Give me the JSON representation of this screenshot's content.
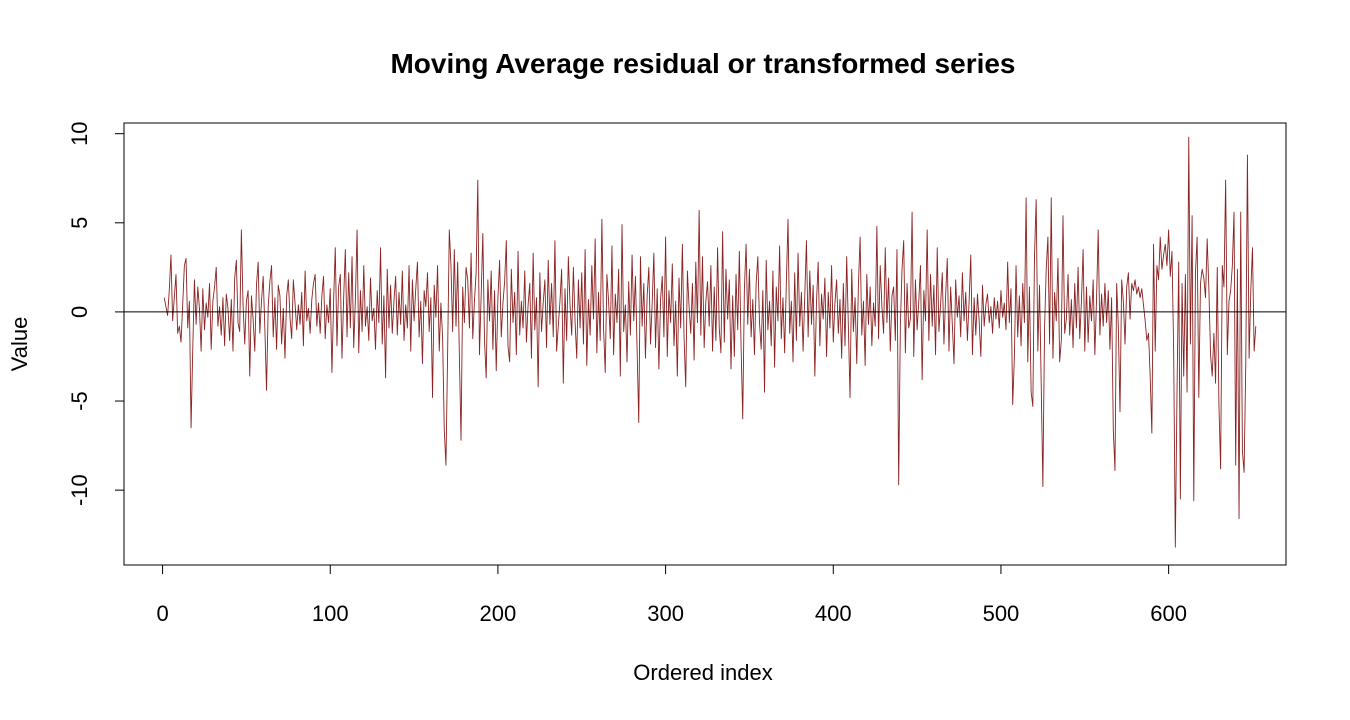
{
  "chart_data": {
    "type": "line",
    "title": "Moving Average residual or transformed series",
    "xlabel": "Ordered index",
    "ylabel": "Value",
    "xlim": [
      -23,
      670
    ],
    "ylim": [
      -14.2,
      10.6
    ],
    "x_ticks": [
      0,
      100,
      200,
      300,
      400,
      500,
      600
    ],
    "x_tick_labels": [
      "0",
      "100",
      "200",
      "300",
      "400",
      "500",
      "600"
    ],
    "y_ticks": [
      -10,
      -5,
      0,
      5,
      10
    ],
    "y_tick_labels": [
      "-10",
      "-5",
      "0",
      "5",
      "10"
    ],
    "reference_line": {
      "y": 0,
      "color": "#000000"
    },
    "grid": false,
    "legend": "none",
    "series": [
      {
        "color": "#8b2323",
        "x_start": 1,
        "n": 645,
        "values": [
          0.8,
          0.3,
          -0.2,
          1.2,
          3.2,
          -0.5,
          0.8,
          2.1,
          -1.2,
          -0.8,
          -1.7,
          0.4,
          2.6,
          3.0,
          -0.9,
          0.6,
          -6.5,
          -2.1,
          1.8,
          -0.7,
          1.4,
          0.2,
          -2.2,
          1.3,
          -1.0,
          0.5,
          -0.3,
          1.6,
          -2.1,
          0.6,
          1.4,
          2.5,
          -0.8,
          0.3,
          -1.3,
          0.8,
          -1.9,
          1.0,
          0.2,
          -1.6,
          0.7,
          -2.2,
          1.9,
          2.9,
          -0.6,
          -1.1,
          4.6,
          0.4,
          -1.8,
          0.6,
          1.2,
          -3.6,
          0.9,
          -0.4,
          -2.2,
          1.5,
          2.8,
          -1.2,
          0.6,
          2.0,
          -0.9,
          -4.4,
          0.3,
          1.7,
          2.6,
          -1.4,
          0.8,
          -2.1,
          1.5,
          0.9,
          -1.8,
          0.2,
          -2.6,
          0.9,
          1.8,
          -0.3,
          -1.5,
          1.8,
          0.5,
          -1.0,
          0.4,
          -0.7,
          1.1,
          -1.9,
          2.3,
          -0.5,
          0.2,
          -1.2,
          0.7,
          1.6,
          2.1,
          -0.8,
          0.5,
          -1.2,
          0.9,
          2.0,
          -1.5,
          0.4,
          -0.6,
          1.3,
          -3.4,
          0.6,
          3.6,
          -1.9,
          1.4,
          2.1,
          -2.6,
          0.8,
          3.5,
          -1.4,
          2.2,
          -0.9,
          3.1,
          -2.0,
          0.7,
          4.6,
          -2.3,
          1.2,
          -1.1,
          2.6,
          -0.8,
          0.3,
          -1.6,
          1.9,
          -0.5,
          0.2,
          -2.1,
          1.2,
          -0.6,
          3.6,
          -1.8,
          0.9,
          -3.7,
          2.4,
          -0.9,
          1.5,
          -1.2,
          0.6,
          2.0,
          -1.3,
          1.1,
          -0.7,
          2.3,
          -1.6,
          0.4,
          -0.9,
          2.6,
          -2.2,
          1.8,
          -0.5,
          1.3,
          2.8,
          -1.4,
          0.6,
          -2.9,
          1.2,
          0.3,
          2.2,
          -1.1,
          0.8,
          -4.8,
          1.5,
          -0.3,
          2.6,
          -2.2,
          0.5,
          -1.4,
          -6.6,
          -8.6,
          -2.3,
          4.6,
          2.6,
          -1.1,
          3.5,
          -0.8,
          2.8,
          -2.4,
          -7.2,
          1.4,
          -0.6,
          2.5,
          1.8,
          -0.9,
          3.3,
          -1.5,
          0.6,
          2.2,
          7.4,
          -2.4,
          0.9,
          4.4,
          -1.6,
          -3.7,
          1.8,
          -0.5,
          2.3,
          -2.1,
          1.2,
          -3.3,
          0.8,
          2.9,
          -1.4,
          0.5,
          1.7,
          4.0,
          -1.9,
          -2.8,
          2.4,
          -0.6,
          1.1,
          -2.4,
          3.4,
          -1.3,
          0.6,
          -0.9,
          2.3,
          -1.7,
          0.4,
          1.6,
          -2.6,
          3.3,
          -1.0,
          0.8,
          -4.2,
          2.2,
          -1.1,
          0.5,
          1.8,
          -2.0,
          2.9,
          -0.7,
          1.6,
          -1.4,
          4.0,
          -2.2,
          -0.8,
          0.6,
          2.4,
          -4.0,
          1.3,
          -1.6,
          3.1,
          0.4,
          -1.3,
          2.5,
          -0.5,
          -2.6,
          1.8,
          -0.9,
          2.2,
          -1.8,
          3.5,
          -3.0,
          0.7,
          -1.3,
          2.6,
          -0.4,
          4.1,
          -2.3,
          1.1,
          -1.6,
          5.2,
          -0.9,
          -3.4,
          2.1,
          0.6,
          -1.5,
          3.7,
          -2.4,
          1.0,
          -0.6,
          2.4,
          -3.6,
          4.9,
          -1.1,
          0.4,
          -2.8,
          1.7,
          -1.3,
          3.2,
          -0.5,
          2.0,
          -2.1,
          -6.2,
          3.1,
          -0.8,
          1.6,
          -2.6,
          0.9,
          2.5,
          -1.8,
          0.5,
          3.3,
          -2.0,
          1.3,
          -3.2,
          0.7,
          2.0,
          -1.4,
          4.2,
          -2.5,
          1.2,
          -0.6,
          2.7,
          -1.9,
          0.6,
          -3.6,
          1.9,
          -0.9,
          3.8,
          -1.4,
          -4.2,
          2.3,
          0.3,
          -1.2,
          1.6,
          -2.7,
          2.8,
          -0.6,
          5.7,
          -1.3,
          3.1,
          -2.0,
          0.6,
          1.7,
          -0.8,
          2.6,
          -2.2,
          1.4,
          -1.6,
          3.6,
          -0.9,
          -2.3,
          4.5,
          -1.7,
          2.4,
          -0.4,
          1.8,
          -3.2,
          0.9,
          -2.5,
          2.1,
          -1.0,
          3.4,
          -1.9,
          -6.0,
          1.3,
          3.8,
          -0.7,
          2.4,
          -1.4,
          0.7,
          -2.4,
          1.6,
          3.1,
          -0.6,
          -2.1,
          1.2,
          -4.5,
          2.9,
          -1.0,
          0.6,
          -1.9,
          2.3,
          -3.1,
          1.4,
          -0.5,
          3.7,
          -1.5,
          0.8,
          -2.3,
          1.6,
          5.2,
          -1.2,
          0.6,
          -2.8,
          2.2,
          -1.6,
          3.3,
          -0.8,
          1.1,
          -2.2,
          0.9,
          4.0,
          -1.4,
          2.3,
          -0.7,
          1.5,
          -3.6,
          0.6,
          2.8,
          -1.9,
          1.0,
          -0.4,
          1.9,
          -2.5,
          1.1,
          -0.9,
          2.6,
          -1.7,
          0.5,
          1.8,
          -1.2,
          0.7,
          -2.6,
          1.6,
          -1.9,
          3.1,
          -0.8,
          -4.8,
          2.4,
          -1.1,
          0.8,
          -2.9,
          1.5,
          4.2,
          -1.3,
          0.6,
          -3.0,
          2.1,
          -0.7,
          1.4,
          -1.9,
          0.5,
          -0.8,
          4.8,
          -1.5,
          2.6,
          0.3,
          -1.2,
          3.6,
          -0.6,
          1.9,
          -2.2,
          0.9,
          1.4,
          -1.6,
          3.5,
          -9.7,
          -0.8,
          2.4,
          4.0,
          -2.3,
          1.6,
          -0.9,
          -0.4,
          5.6,
          -2.5,
          1.8,
          -1.0,
          0.6,
          2.6,
          -3.8,
          1.2,
          -0.5,
          4.6,
          -1.6,
          2.1,
          -0.8,
          1.5,
          -2.4,
          3.6,
          -1.1,
          0.4,
          2.2,
          -1.8,
          0.9,
          3.0,
          -2.2,
          1.4,
          -0.7,
          -2.9,
          1.8,
          -0.3,
          0.9,
          -1.4,
          2.2,
          -0.5,
          1.1,
          -1.6,
          0.6,
          3.2,
          -2.4,
          0.8,
          -1.3,
          1.0,
          -0.5,
          -2.5,
          1.5,
          -0.8,
          0.4,
          1.0,
          -0.6,
          0.3,
          -1.2,
          0.8,
          -0.4,
          0.6,
          -0.9,
          1.2,
          -0.3,
          0.5,
          -1.0,
          2.8,
          -0.6,
          1.3,
          -5.2,
          -2.6,
          2.6,
          -1.4,
          0.9,
          -1.9,
          1.6,
          -0.6,
          6.4,
          -2.8,
          1.4,
          -4.5,
          -5.3,
          3.1,
          6.3,
          -2.2,
          1.5,
          -4.0,
          -9.8,
          -0.9,
          2.4,
          4.2,
          -1.8,
          6.4,
          -2.6,
          1.1,
          -0.5,
          3.0,
          -2.8,
          -1.6,
          5.4,
          -1.2,
          -0.4,
          2.1,
          -1.3,
          0.7,
          -2.0,
          1.6,
          -0.9,
          2.5,
          -1.5,
          0.6,
          3.5,
          -2.2,
          1.4,
          -1.7,
          0.9,
          -0.5,
          1.8,
          -2.4,
          0.7,
          4.6,
          -1.3,
          1.0,
          -0.8,
          1.6,
          -0.6,
          1.2,
          -2.1,
          0.8,
          -6.6,
          -8.9,
          1.6,
          -0.8,
          -5.6,
          1.8,
          0.6,
          -1.8,
          1.4,
          2.2,
          -0.4,
          1.6,
          1.2,
          1.8,
          1.0,
          1.4,
          0.8,
          1.3,
          0.4,
          -0.5,
          -1.6,
          -1.2,
          -3.6,
          -6.8,
          3.8,
          -2.2,
          2.6,
          1.8,
          4.2,
          2.4,
          3.2,
          3.8,
          2.6,
          4.6,
          2.0,
          3.4,
          -2.2,
          -13.2,
          -4.5,
          2.8,
          -10.5,
          1.6,
          -3.6,
          2.1,
          -4.5,
          9.8,
          -1.8,
          5.4,
          -10.6,
          2.2,
          4.2,
          -4.8,
          1.6,
          2.4,
          1.9,
          0.8,
          4.1,
          1.3,
          -2.4,
          -3.6,
          -1.2,
          -4.0,
          2.5,
          -5.2,
          -8.8,
          2.6,
          1.4,
          7.4,
          -2.4,
          0.6,
          1.2,
          2.6,
          5.6,
          -8.6,
          2.4,
          -11.6,
          5.6,
          -7.8,
          -9.0,
          -3.0,
          8.8,
          -2.6,
          1.2,
          3.6,
          -2.2,
          -0.8
        ]
      }
    ]
  }
}
